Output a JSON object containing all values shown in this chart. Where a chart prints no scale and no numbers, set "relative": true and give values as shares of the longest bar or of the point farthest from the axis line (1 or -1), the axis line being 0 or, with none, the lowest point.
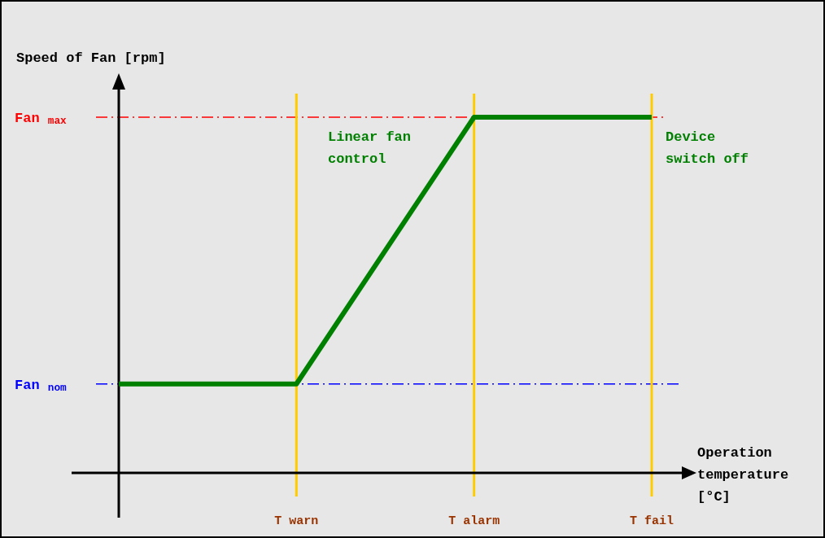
{
  "chart_data": {
    "type": "line",
    "relative": true,
    "xlabel": "Operation temperature [°C]",
    "ylabel": "Speed of Fan [rpm]",
    "categories": [
      null,
      "T warn",
      "T alarm",
      "T fail"
    ],
    "series": [
      {
        "color": "#008000",
        "values": [
          0.25,
          0.25,
          1,
          1
        ]
      }
    ],
    "ref_lines": [
      {
        "axis": "y",
        "value": 1,
        "label": "Fan $_{max}$",
        "color": "#ff0000",
        "line_style": "dashed"
      },
      {
        "axis": "y",
        "value": 0.25,
        "label": "Fan $_{nom}$",
        "color": "#0000ff",
        "line_style": "dashed"
      },
      {
        "axis": "x",
        "value": "T warn",
        "color": "#ffcc00",
        "line_style": "solid"
      },
      {
        "axis": "x",
        "value": "T alarm",
        "color": "#ffcc00",
        "line_style": "solid"
      },
      {
        "axis": "x",
        "value": "T fail",
        "color": "#ffcc00",
        "line_style": "solid"
      }
    ],
    "annotations": [
      "Linear fan control",
      "Device switch off"
    ]
  }
}
